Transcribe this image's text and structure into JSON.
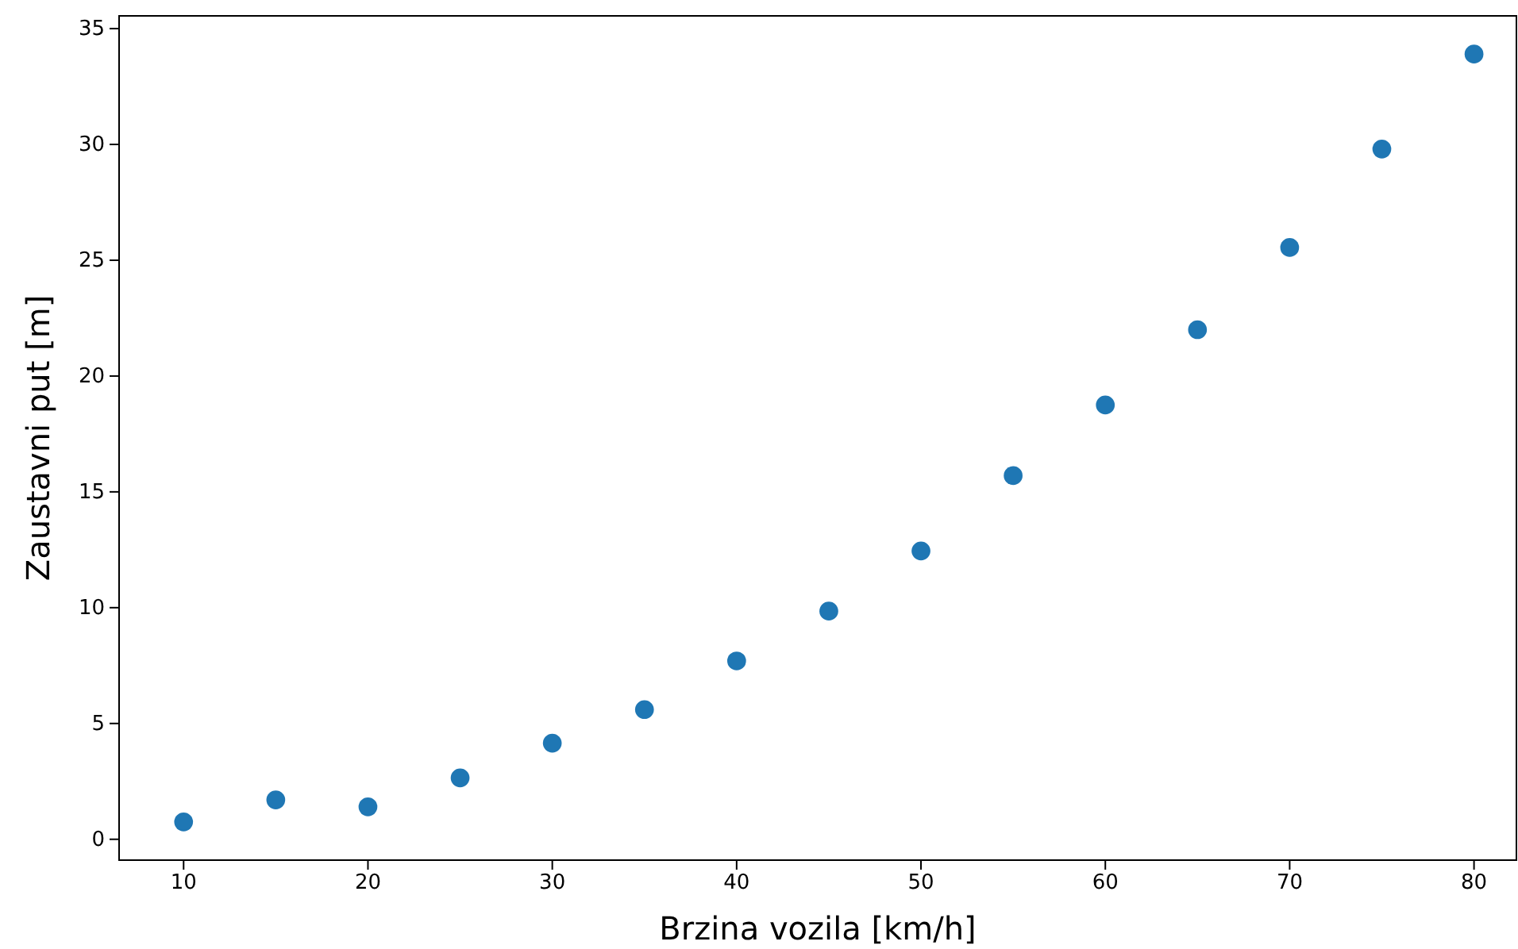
{
  "chart_data": {
    "type": "scatter",
    "xlabel": "Brzina vozila [km/h]",
    "ylabel": "Zaustavni put [m]",
    "x": [
      10,
      15,
      20,
      25,
      30,
      35,
      40,
      45,
      50,
      55,
      60,
      65,
      70,
      75,
      80
    ],
    "series": [
      {
        "color": "#1f77b4",
        "values": [
          0.75,
          1.7,
          1.4,
          2.65,
          4.15,
          5.6,
          7.7,
          9.85,
          12.45,
          15.7,
          18.75,
          22.0,
          25.55,
          29.8,
          33.9
        ]
      }
    ],
    "xlim": [
      6.5,
      82.3
    ],
    "ylim": [
      -0.9,
      35.55
    ],
    "xticks": [
      10,
      20,
      30,
      40,
      50,
      60,
      70,
      80
    ],
    "yticks": [
      0,
      5,
      10,
      15,
      20,
      25,
      30,
      35
    ],
    "marker": "circle",
    "grid": false
  }
}
